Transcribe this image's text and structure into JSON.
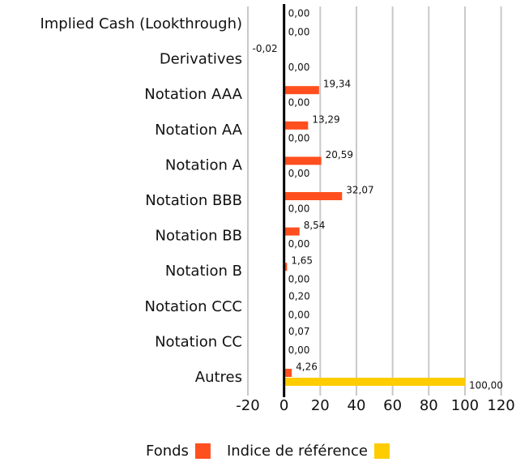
{
  "chart_data": {
    "type": "hbar",
    "categories": [
      "Implied Cash (Lookthrough)",
      "Derivatives",
      "Notation AAA",
      "Notation AA",
      "Notation A",
      "Notation BBB",
      "Notation BB",
      "Notation B",
      "Notation CCC",
      "Notation CC",
      "Autres"
    ],
    "series": [
      {
        "name": "Fonds",
        "color": "#ff4f1f",
        "values": [
          0.0,
          -0.02,
          19.34,
          13.29,
          20.59,
          32.07,
          8.54,
          1.65,
          0.2,
          0.07,
          4.26
        ],
        "value_labels": [
          "0,00",
          "-0,02",
          "19,34",
          "13,29",
          "20,59",
          "32,07",
          "8,54",
          "1,65",
          "0,20",
          "0,07",
          "4,26"
        ]
      },
      {
        "name": "Indice de référence",
        "color": "#ffcc00",
        "values": [
          0,
          0,
          0,
          0,
          0,
          0,
          0,
          0,
          0,
          0,
          100.0
        ],
        "value_labels": [
          "0,00",
          "0,00",
          "0,00",
          "0,00",
          "0,00",
          "0,00",
          "0,00",
          "0,00",
          "0,00",
          "0,00",
          "100,00"
        ]
      }
    ],
    "xlim": [
      -20,
      120
    ],
    "xticks": [
      -20,
      0,
      20,
      40,
      60,
      80,
      100,
      120
    ],
    "grid": true,
    "legend": "bottom"
  }
}
